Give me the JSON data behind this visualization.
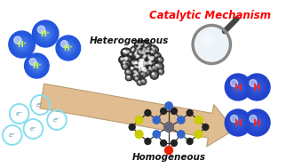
{
  "title": "Catalytic Mechanism",
  "title_color": "#ff0000",
  "label_heterogeneous": "Heterogeneous",
  "label_homogeneous": "Homogeneous",
  "bg_color": "#ffffff",
  "arrow_color": "#deb887",
  "arrow_edge_color": "#b8966a",
  "figw": 3.22,
  "figh": 1.89,
  "dpi": 100
}
